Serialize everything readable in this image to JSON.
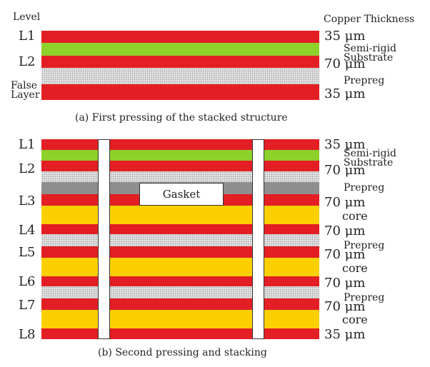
{
  "colors": {
    "copper": "#e31e24",
    "semi_rigid": "#8ed12b",
    "core": "#fcd000",
    "gasket_layer": "#8e8e8e",
    "prepreg": "#e4e4e4"
  },
  "header": {
    "level": "Level",
    "copper_thickness": "Copper Thickness"
  },
  "part_a": {
    "levels": [
      "L1",
      "L2",
      "False\nLayer"
    ],
    "false_layer_line1": "False",
    "false_layer_line2": "Layer",
    "thickness": [
      "35 μm",
      "70 μm",
      "35 μm"
    ],
    "materials": {
      "semi_rigid_1": "Semi-rigid",
      "semi_rigid_2": "Substrate",
      "prepreg": "Prepreg"
    },
    "caption": "(a) First pressing of the stacked structure"
  },
  "part_b": {
    "levels": [
      "L1",
      "L2",
      "L3",
      "L4",
      "L5",
      "L6",
      "L7",
      "L8"
    ],
    "thickness": [
      "35 μm",
      "70 μm",
      "70 μm",
      "70 μm",
      "70 μm",
      "70 μm",
      "70 μm",
      "35 μm"
    ],
    "materials": {
      "semi_rigid_1": "Semi-rigid",
      "semi_rigid_2": "Substrate",
      "prepreg": "Prepreg",
      "core": "core"
    },
    "gasket": "Gasket",
    "caption": "(b) Second pressing and stacking"
  }
}
